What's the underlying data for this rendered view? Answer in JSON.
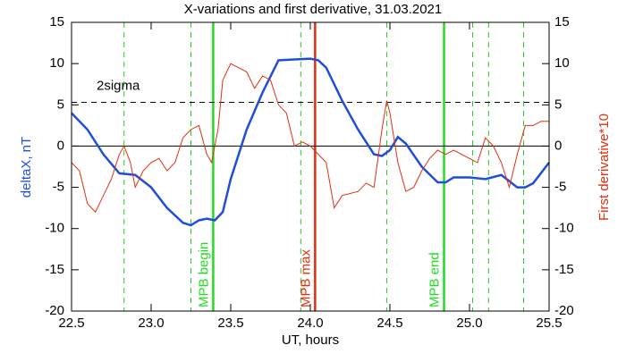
{
  "chart_data": {
    "type": "line",
    "title": "X-variations and first derivative, 31.03.2021",
    "xlabel": "UT, hours",
    "xlim": [
      22.5,
      25.5
    ],
    "xticks": [
      22.5,
      {
        "value": 23,
        "label": "23.0"
      },
      23.5,
      {
        "value": 24,
        "label": "24.0"
      },
      24.5,
      {
        "value": 25,
        "label": "25.0"
      },
      25.5
    ],
    "ylim": [
      -20,
      15
    ],
    "yticks": [
      -20,
      -15,
      -10,
      -5,
      0,
      5,
      10,
      15
    ],
    "y2lim": [
      -20,
      15
    ],
    "y2ticks": [
      -20,
      -15,
      -10,
      -5,
      0,
      5,
      10,
      15
    ],
    "series": [
      {
        "name": "deltaX, nT",
        "color": "#1f4fd8",
        "axis": "y",
        "x": [
          22.5,
          22.6,
          22.7,
          22.8,
          22.9,
          23.0,
          23.1,
          23.2,
          23.25,
          23.3,
          23.35,
          23.4,
          23.45,
          23.5,
          23.6,
          23.7,
          23.8,
          23.9,
          24.0,
          24.05,
          24.1,
          24.2,
          24.3,
          24.4,
          24.45,
          24.5,
          24.55,
          24.6,
          24.7,
          24.8,
          24.85,
          24.9,
          25.0,
          25.1,
          25.2,
          25.3,
          25.35,
          25.4,
          25.5
        ],
        "values": [
          4,
          2,
          -1,
          -3.3,
          -3.5,
          -5,
          -7.5,
          -9.3,
          -9.6,
          -9,
          -8.8,
          -9,
          -8,
          -4,
          2,
          6.5,
          10.4,
          10.5,
          10.6,
          10.4,
          9.5,
          5.5,
          2,
          -1,
          -1.2,
          -0.5,
          1.1,
          0.3,
          -2.5,
          -4.4,
          -4.4,
          -3.8,
          -3.8,
          -4,
          -3.5,
          -5,
          -5,
          -4.5,
          -2
        ]
      },
      {
        "name": "First derivative*10",
        "color": "#e03010",
        "axis": "y2",
        "x": [
          22.5,
          22.55,
          22.6,
          22.65,
          22.7,
          22.75,
          22.8,
          22.83,
          22.87,
          22.9,
          22.95,
          23.0,
          23.05,
          23.1,
          23.15,
          23.2,
          23.25,
          23.3,
          23.35,
          23.38,
          23.42,
          23.45,
          23.5,
          23.55,
          23.6,
          23.65,
          23.7,
          23.75,
          23.8,
          23.85,
          23.9,
          23.95,
          24.0,
          24.05,
          24.1,
          24.15,
          24.2,
          24.3,
          24.35,
          24.4,
          24.45,
          24.48,
          24.5,
          24.55,
          24.6,
          24.65,
          24.7,
          24.75,
          24.8,
          24.85,
          24.9,
          24.95,
          25.0,
          25.05,
          25.1,
          25.15,
          25.2,
          25.25,
          25.3,
          25.35,
          25.4,
          25.45,
          25.5
        ],
        "values": [
          -2,
          -3,
          -7,
          -8,
          -6,
          -4,
          -1,
          0,
          -2,
          -5,
          -3,
          -2,
          -1.5,
          -3,
          -2,
          1,
          2,
          2.5,
          -1,
          -2,
          2,
          8,
          10,
          9.5,
          9,
          7,
          8.5,
          8,
          5,
          4,
          0,
          0.5,
          0,
          -1,
          -2,
          -7.5,
          -6,
          -5.5,
          -4.5,
          -5,
          2,
          5.5,
          4,
          -2,
          -5.5,
          -5,
          -3,
          -1.5,
          -0.5,
          -1,
          -0.5,
          -1,
          -1.5,
          -2,
          1,
          0,
          -2,
          -5,
          -1,
          2.5,
          2.5,
          3,
          3
        ]
      }
    ],
    "hlines": [
      {
        "y": 5.3,
        "label": "2sigma",
        "style": "dashed",
        "color": "#000000"
      },
      {
        "y": 0,
        "style": "solid",
        "color": "#000000"
      }
    ],
    "vlines": [
      {
        "x": 22.83,
        "style": "dashed",
        "color": "#22cc22"
      },
      {
        "x": 23.25,
        "style": "dashed",
        "color": "#22cc22"
      },
      {
        "x": 23.39,
        "style": "solid",
        "color": "#22dd22",
        "label": "MPB begin"
      },
      {
        "x": 23.94,
        "style": "dashed",
        "color": "#22cc22"
      },
      {
        "x": 24.03,
        "style": "solid",
        "color": "#e03010",
        "label": "MPB max"
      },
      {
        "x": 24.48,
        "style": "dashed",
        "color": "#22cc22"
      },
      {
        "x": 24.84,
        "style": "solid",
        "color": "#22dd22",
        "label": "MPB end"
      },
      {
        "x": 25.02,
        "style": "dashed",
        "color": "#22cc22"
      },
      {
        "x": 25.12,
        "style": "dashed",
        "color": "#22cc22"
      },
      {
        "x": 25.34,
        "style": "dashed",
        "color": "#22cc22"
      }
    ]
  }
}
